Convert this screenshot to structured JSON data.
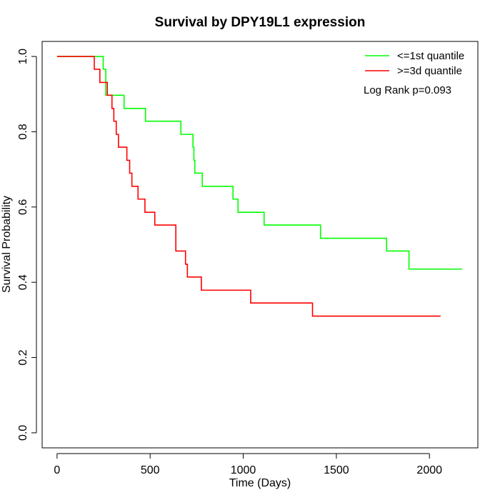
{
  "chart_data": {
    "type": "line",
    "title": "Survival by DPY19L1 expression",
    "xlabel": "Time (Days)",
    "ylabel": "Survival Probability",
    "xlim": [
      -80,
      2260
    ],
    "ylim": [
      -0.04,
      1.04
    ],
    "x_ticks": [
      0,
      500,
      1000,
      1500,
      2000
    ],
    "x_tick_labels": [
      "0",
      "500",
      "1000",
      "1500",
      "2000"
    ],
    "y_ticks": [
      0.0,
      0.2,
      0.4,
      0.6,
      0.8,
      1.0
    ],
    "y_tick_labels": [
      "0.0",
      "0.2",
      "0.4",
      "0.6",
      "0.8",
      "1.0"
    ],
    "grid": false,
    "legend_position": "top-right",
    "annotation": "Log Rank p=0.093",
    "series": [
      {
        "name": "<=1st quantile",
        "color": "#00ff00",
        "step": true,
        "x": [
          0,
          248,
          262,
          360,
          475,
          665,
          730,
          735,
          740,
          780,
          945,
          972,
          1112,
          1415,
          1770,
          1890,
          2175
        ],
        "y": [
          1.0,
          0.966,
          0.897,
          0.862,
          0.828,
          0.793,
          0.759,
          0.724,
          0.69,
          0.655,
          0.621,
          0.586,
          0.552,
          0.517,
          0.483,
          0.435,
          0.435
        ]
      },
      {
        "name": ">=3d quantile",
        "color": "#ff0000",
        "step": true,
        "x": [
          0,
          200,
          230,
          270,
          295,
          305,
          318,
          330,
          375,
          390,
          402,
          435,
          472,
          525,
          638,
          690,
          700,
          775,
          1040,
          1372,
          2060
        ],
        "y": [
          1.0,
          0.966,
          0.931,
          0.897,
          0.862,
          0.828,
          0.793,
          0.759,
          0.724,
          0.69,
          0.655,
          0.621,
          0.586,
          0.552,
          0.483,
          0.448,
          0.414,
          0.379,
          0.345,
          0.31,
          0.31
        ]
      }
    ]
  }
}
